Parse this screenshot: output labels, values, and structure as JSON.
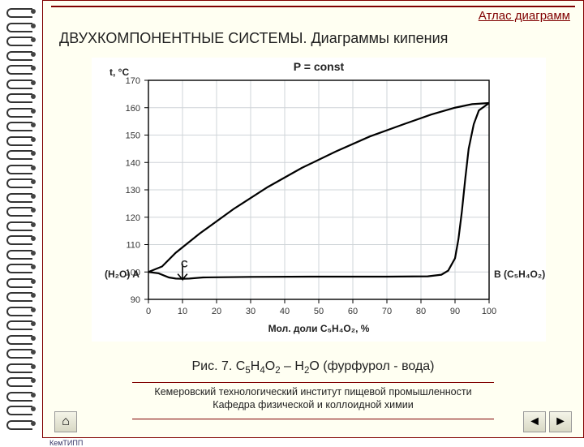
{
  "header": {
    "breadcrumb": "Атлас диаграмм"
  },
  "title": "ДВУХКОМПОНЕНТНЫЕ СИСТЕМЫ. Диаграммы кипения",
  "caption": {
    "prefix": "Рис. 7. ",
    "system": "C5H4O2 – H2O (фурфурол - вода)"
  },
  "footer": {
    "line1": "Кемеровский технологический институт пищевой промышленности",
    "line2": "Кафедра физической и коллоидной химии"
  },
  "chart": {
    "type": "line",
    "top_label": "P = const",
    "y_axis_label": "t, °C",
    "x_axis_label": "Мол. доли C5H4O2, %",
    "left_label": "(H2O) A",
    "right_label": "B (C5H4O2)",
    "point_label_C": "C",
    "xlim": [
      0,
      100
    ],
    "ylim": [
      90,
      170
    ],
    "xticks": [
      0,
      10,
      20,
      30,
      40,
      50,
      60,
      70,
      80,
      90,
      100
    ],
    "yticks": [
      90,
      100,
      110,
      120,
      130,
      140,
      150,
      160,
      170
    ],
    "tick_fontsize": 11,
    "label_fontsize": 12,
    "top_label_fontsize": 14,
    "background_color": "#ffffff",
    "grid_color": "#cfd4d8",
    "axis_color": "#000000",
    "line_color": "#000000",
    "line_width": 2.2,
    "upper_curve": [
      [
        0,
        100
      ],
      [
        4,
        102
      ],
      [
        8,
        107
      ],
      [
        15,
        114
      ],
      [
        25,
        123
      ],
      [
        35,
        131
      ],
      [
        45,
        138
      ],
      [
        55,
        144
      ],
      [
        65,
        149.5
      ],
      [
        75,
        154
      ],
      [
        83,
        157.5
      ],
      [
        90,
        160
      ],
      [
        95,
        161.3
      ],
      [
        100,
        161.7
      ]
    ],
    "lower_curve": [
      [
        0,
        100
      ],
      [
        3,
        99.5
      ],
      [
        6,
        98
      ],
      [
        8,
        97.6
      ],
      [
        10,
        97.5
      ],
      [
        12,
        97.6
      ],
      [
        16,
        98
      ],
      [
        30,
        98.2
      ],
      [
        50,
        98.3
      ],
      [
        70,
        98.3
      ],
      [
        82,
        98.4
      ],
      [
        86,
        99
      ],
      [
        88,
        100.5
      ],
      [
        90,
        105
      ],
      [
        91,
        112
      ],
      [
        92,
        122
      ],
      [
        93,
        134
      ],
      [
        94,
        145
      ],
      [
        95.5,
        154
      ],
      [
        97,
        159
      ],
      [
        100,
        161.7
      ]
    ],
    "azeotrope_x": 10,
    "marker_path": [
      [
        10,
        103
      ],
      [
        10,
        97.3
      ],
      [
        8.6,
        99.3
      ],
      [
        10,
        97.3
      ],
      [
        11.4,
        99.3
      ],
      [
        10,
        97.3
      ]
    ]
  },
  "nav": {
    "home_icon": "⌂",
    "prev_icon": "◄",
    "next_icon": "►"
  }
}
